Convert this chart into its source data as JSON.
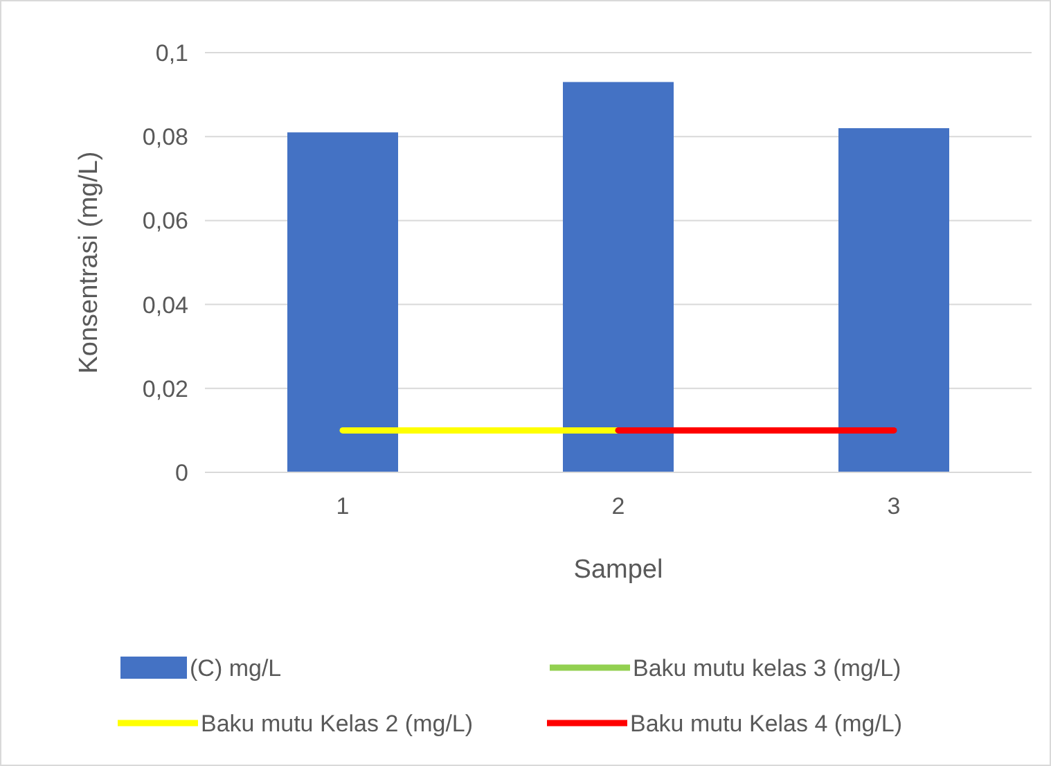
{
  "chart_data": {
    "type": "bar",
    "xlabel": "Sampel",
    "ylabel": "Konsentrasi (mg/L)",
    "categories": [
      "1",
      "2",
      "3"
    ],
    "series": [
      {
        "name": "(C) mg/L",
        "color": "#4472c4",
        "values": [
          0.081,
          0.093,
          0.082
        ]
      },
      {
        "name": "Baku mutu kelas 3 (mg/L)",
        "type": "line",
        "color": "#92d050",
        "values": [
          null,
          null,
          null
        ]
      },
      {
        "name": "Baku mutu Kelas 2 (mg/L)",
        "type": "line",
        "color": "#ffff00",
        "values": [
          0.01,
          0.01,
          null
        ]
      },
      {
        "name": "Baku mutu Kelas 4 (mg/L)",
        "type": "line",
        "color": "#ff0000",
        "values": [
          null,
          0.01,
          0.01
        ]
      }
    ],
    "ylim": [
      0,
      0.1
    ],
    "yticks": [
      {
        "value": 0,
        "label": "0"
      },
      {
        "value": 0.02,
        "label": "0,02"
      },
      {
        "value": 0.04,
        "label": "0,04"
      },
      {
        "value": 0.06,
        "label": "0,06"
      },
      {
        "value": 0.08,
        "label": "0,08"
      },
      {
        "value": 0.1,
        "label": "0,1"
      }
    ],
    "grid": "y",
    "legend": "bottom",
    "marker": "none",
    "line_style": "solid"
  }
}
